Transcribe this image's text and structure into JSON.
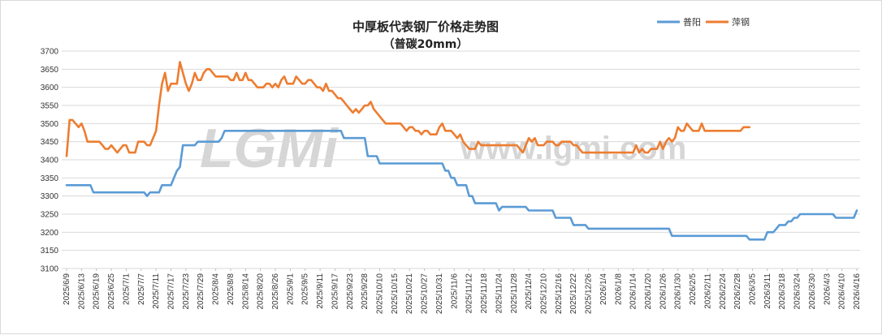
{
  "chart_data": {
    "type": "line",
    "title": "中厚板代表钢厂价格走势图",
    "subtitle": "（普碳20mm）",
    "watermark": [
      "LGMi",
      "www.lgmi.com"
    ],
    "ylim": [
      3100,
      3700
    ],
    "yticks": [
      3100,
      3150,
      3200,
      3250,
      3300,
      3350,
      3400,
      3450,
      3500,
      3550,
      3600,
      3650,
      3700
    ],
    "grid": true,
    "legend_position": "top-right",
    "x_tick_labels": [
      "2025/6/9",
      "2025/6/13",
      "2025/6/19",
      "2025/6/25",
      "2025/7/1",
      "2025/7/7",
      "2025/7/11",
      "2025/7/17",
      "2025/7/23",
      "2025/7/29",
      "2025/8/4",
      "2025/8/8",
      "2025/8/14",
      "2025/8/20",
      "2025/8/26",
      "2025/9/1",
      "2025/9/5",
      "2025/9/11",
      "2025/9/17",
      "2025/9/23",
      "2025/9/28",
      "2025/10/10",
      "2025/10/15",
      "2025/10/21",
      "2025/10/27",
      "2025/10/31",
      "2025/11/6",
      "2025/11/12",
      "2025/11/18",
      "2025/11/24",
      "2025/11/28",
      "2025/12/4",
      "2025/12/10",
      "2025/12/16",
      "2025/12/22",
      "2025/12/26",
      "2026/1/4",
      "2026/1/8",
      "2026/1/14",
      "2026/1/20",
      "2026/1/26",
      "2026/1/30",
      "2026/2/5",
      "2026/2/11",
      "2026/2/24",
      "2026/2/28",
      "2026/3/5",
      "2026/3/11",
      "2026/3/18",
      "2026/3/24",
      "2026/3/30",
      "2026/4/3",
      "2026/4/10",
      "2026/4/16"
    ],
    "series": [
      {
        "name": "普阳",
        "color": "#5b9bd5",
        "values": [
          3330,
          3330,
          3330,
          3330,
          3330,
          3330,
          3330,
          3330,
          3330,
          3310,
          3310,
          3310,
          3310,
          3310,
          3310,
          3310,
          3310,
          3310,
          3310,
          3310,
          3310,
          3310,
          3310,
          3310,
          3310,
          3310,
          3310,
          3300,
          3310,
          3310,
          3310,
          3310,
          3330,
          3330,
          3330,
          3330,
          3350,
          3370,
          3380,
          3440,
          3440,
          3440,
          3440,
          3440,
          3450,
          3450,
          3450,
          3450,
          3450,
          3450,
          3450,
          3450,
          3460,
          3480,
          3480,
          3480,
          3480,
          3480,
          3480,
          3480,
          3480,
          3480,
          3480,
          3480,
          3480,
          3480,
          3480,
          3480,
          3480,
          3480,
          3480,
          3480,
          3480,
          3480,
          3480,
          3480,
          3480,
          3480,
          3480,
          3480,
          3480,
          3480,
          3480,
          3480,
          3480,
          3480,
          3480,
          3480,
          3480,
          3480,
          3480,
          3480,
          3480,
          3460,
          3460,
          3460,
          3460,
          3460,
          3460,
          3460,
          3460,
          3410,
          3410,
          3410,
          3410,
          3390,
          3390,
          3390,
          3390,
          3390,
          3390,
          3390,
          3390,
          3390,
          3390,
          3390,
          3390,
          3390,
          3390,
          3390,
          3390,
          3390,
          3390,
          3390,
          3390,
          3390,
          3390,
          3370,
          3370,
          3350,
          3350,
          3330,
          3330,
          3330,
          3330,
          3300,
          3300,
          3280,
          3280,
          3280,
          3280,
          3280,
          3280,
          3280,
          3280,
          3260,
          3270,
          3270,
          3270,
          3270,
          3270,
          3270,
          3270,
          3270,
          3270,
          3260,
          3260,
          3260,
          3260,
          3260,
          3260,
          3260,
          3260,
          3260,
          3240,
          3240,
          3240,
          3240,
          3240,
          3240,
          3220,
          3220,
          3220,
          3220,
          3220,
          3210,
          3210,
          3210,
          3210,
          3210,
          3210,
          3210,
          3210,
          3210,
          3210,
          3210,
          3210,
          3210,
          3210,
          3210,
          3210,
          3210,
          3210,
          3210,
          3210,
          3210,
          3210,
          3210,
          3210,
          3210,
          3210,
          3210,
          3210,
          3190,
          3190,
          3190,
          3190,
          3190,
          3190,
          3190,
          3190,
          3190,
          3190,
          3190,
          3190,
          3190,
          3190,
          3190,
          3190,
          3190,
          3190,
          3190,
          3190,
          3190,
          3190,
          3190,
          3190,
          3190,
          3190,
          3180,
          3180,
          3180,
          3180,
          3180,
          3180,
          3200,
          3200,
          3200,
          3210,
          3220,
          3220,
          3220,
          3230,
          3230,
          3240,
          3240,
          3250,
          3250,
          3250,
          3250,
          3250,
          3250,
          3250,
          3250,
          3250,
          3250,
          3250,
          3250,
          3240,
          3240,
          3240,
          3240,
          3240,
          3240,
          3240,
          3260
        ]
      },
      {
        "name": "萍钢",
        "color": "#ed7d31",
        "values": [
          3410,
          3510,
          3510,
          3500,
          3490,
          3500,
          3480,
          3450,
          3450,
          3450,
          3450,
          3450,
          3440,
          3430,
          3430,
          3440,
          3430,
          3420,
          3430,
          3440,
          3440,
          3420,
          3420,
          3420,
          3450,
          3450,
          3450,
          3440,
          3440,
          3460,
          3480,
          3550,
          3610,
          3640,
          3590,
          3610,
          3610,
          3610,
          3670,
          3640,
          3610,
          3590,
          3610,
          3640,
          3620,
          3620,
          3640,
          3650,
          3650,
          3640,
          3630,
          3630,
          3630,
          3630,
          3630,
          3620,
          3620,
          3640,
          3620,
          3620,
          3640,
          3620,
          3620,
          3610,
          3600,
          3600,
          3600,
          3610,
          3610,
          3600,
          3610,
          3600,
          3620,
          3630,
          3610,
          3610,
          3610,
          3630,
          3620,
          3610,
          3610,
          3620,
          3620,
          3610,
          3600,
          3600,
          3590,
          3610,
          3590,
          3590,
          3580,
          3570,
          3570,
          3560,
          3550,
          3540,
          3530,
          3540,
          3530,
          3540,
          3550,
          3550,
          3560,
          3540,
          3530,
          3520,
          3510,
          3500,
          3500,
          3500,
          3500,
          3500,
          3500,
          3490,
          3480,
          3490,
          3490,
          3480,
          3480,
          3470,
          3480,
          3480,
          3470,
          3470,
          3470,
          3490,
          3500,
          3480,
          3480,
          3480,
          3470,
          3460,
          3470,
          3450,
          3440,
          3430,
          3430,
          3430,
          3450,
          3440,
          3440,
          3440,
          3440,
          3440,
          3440,
          3440,
          3440,
          3440,
          3440,
          3440,
          3440,
          3440,
          3430,
          3420,
          3440,
          3460,
          3450,
          3460,
          3440,
          3440,
          3440,
          3450,
          3450,
          3450,
          3440,
          3440,
          3450,
          3450,
          3450,
          3450,
          3440,
          3440,
          3430,
          3420,
          3420,
          3420,
          3420,
          3420,
          3420,
          3420,
          3420,
          3420,
          3420,
          3420,
          3420,
          3420,
          3420,
          3420,
          3420,
          3420,
          3420,
          3440,
          3420,
          3430,
          3420,
          3420,
          3430,
          3430,
          3430,
          3450,
          3430,
          3450,
          3460,
          3450,
          3460,
          3490,
          3480,
          3480,
          3500,
          3490,
          3480,
          3480,
          3480,
          3500,
          3480,
          3480,
          3480,
          3480,
          3480,
          3480,
          3480,
          3480,
          3480,
          3480,
          3480,
          3480,
          3480,
          3490,
          3490,
          3490
        ]
      }
    ]
  }
}
